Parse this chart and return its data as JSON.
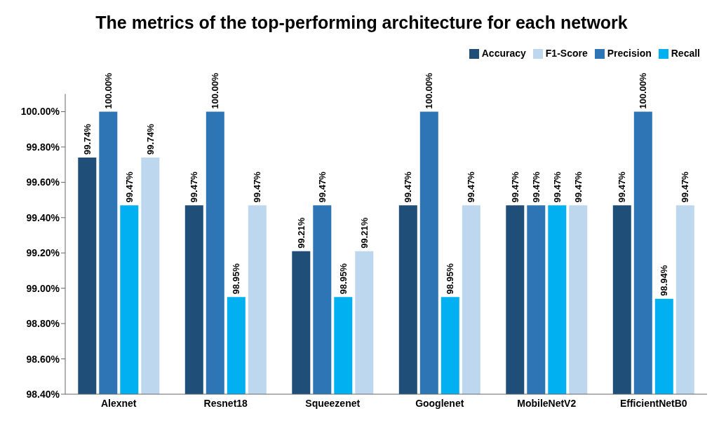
{
  "chart_data": {
    "type": "bar",
    "title": "The metrics of the top-performing architecture for each network",
    "categories": [
      "Alexnet",
      "Resnet18",
      "Squeezenet",
      "Googlenet",
      "MobileNetV2",
      "EfficientNetB0"
    ],
    "series": [
      {
        "name": "Accuracy",
        "color": "#1f4e79",
        "values": [
          99.74,
          99.47,
          99.21,
          99.47,
          99.47,
          99.47
        ],
        "value_labels": [
          "99.74%",
          "99.47%",
          "99.21%",
          "99.47%",
          "99.47%",
          "99.47%"
        ]
      },
      {
        "name": "Precision",
        "color": "#2e75b6",
        "values": [
          100,
          100,
          99.47,
          100,
          99.47,
          100
        ],
        "value_labels": [
          "100.00%",
          "100.00%",
          "99.47%",
          "100.00%",
          "99.47%",
          "100.00%"
        ]
      },
      {
        "name": "Recall",
        "color": "#00b0f0",
        "values": [
          99.47,
          98.95,
          98.95,
          98.95,
          99.47,
          98.94
        ],
        "value_labels": [
          "99.47%",
          "98.95%",
          "98.95%",
          "98.95%",
          "99.47%",
          "98.94%"
        ]
      },
      {
        "name": "F1-Score",
        "color": "#bdd7ee",
        "values": [
          99.74,
          99.47,
          99.21,
          99.47,
          99.47,
          99.47
        ],
        "value_labels": [
          "99.74%",
          "99.47%",
          "99.21%",
          "99.47%",
          "99.47%",
          "99.47%"
        ]
      }
    ],
    "ylim": [
      98.4,
      100.1
    ],
    "yticks": [
      {
        "value": 98.4,
        "label": "98.40%"
      },
      {
        "value": 98.6,
        "label": "98.60%"
      },
      {
        "value": 98.8,
        "label": "98.80%"
      },
      {
        "value": 99,
        "label": "99.00%"
      },
      {
        "value": 99.2,
        "label": "99.20%"
      },
      {
        "value": 99.4,
        "label": "99.40%"
      },
      {
        "value": 99.6,
        "label": "99.60%"
      },
      {
        "value": 99.8,
        "label": "99.80%"
      },
      {
        "value": 100,
        "label": "100.00%"
      }
    ],
    "grid": false,
    "legend": "top right"
  }
}
